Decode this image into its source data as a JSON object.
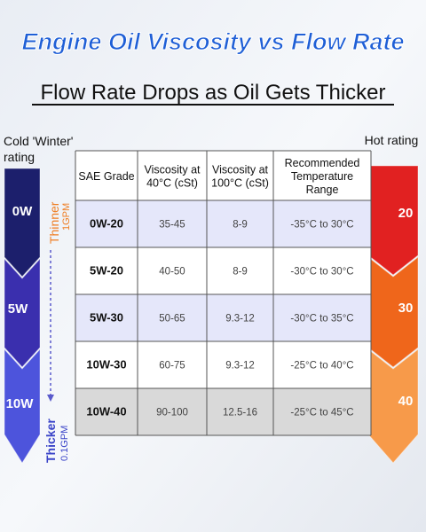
{
  "header": {
    "title": "Engine Oil Viscosity vs Flow Rate",
    "subtitle": "Flow Rate Drops as Oil Gets Thicker"
  },
  "left_scale": {
    "label_line1": "Cold 'Winter'",
    "label_line2": "rating",
    "grades": [
      "0W",
      "5W",
      "10W"
    ],
    "top_label": "Thinner",
    "top_flow": "1GPM",
    "bottom_label": "Thicker",
    "bottom_flow": "0.1GPM"
  },
  "right_scale": {
    "label": "Hot rating",
    "grades": [
      "20",
      "30",
      "40"
    ]
  },
  "table": {
    "columns": [
      [
        "SAE Grade"
      ],
      [
        "Viscosity at",
        "40°C (cSt)"
      ],
      [
        "Viscosity at",
        "100°C (cSt)"
      ],
      [
        "Recommended",
        "Temperature",
        "Range"
      ]
    ],
    "rows": [
      [
        "0W-20",
        "35-45",
        "8-9",
        "-35°C to 30°C"
      ],
      [
        "5W-20",
        "40-50",
        "8-9",
        "-30°C to 30°C"
      ],
      [
        "5W-30",
        "50-65",
        "9.3-12",
        "-30°C to 35°C"
      ],
      [
        "10W-30",
        "60-75",
        "9.3-12",
        "-25°C to 40°C"
      ],
      [
        "10W-40",
        "90-100",
        "12.5-16",
        "-25°C to 45°C"
      ]
    ]
  }
}
